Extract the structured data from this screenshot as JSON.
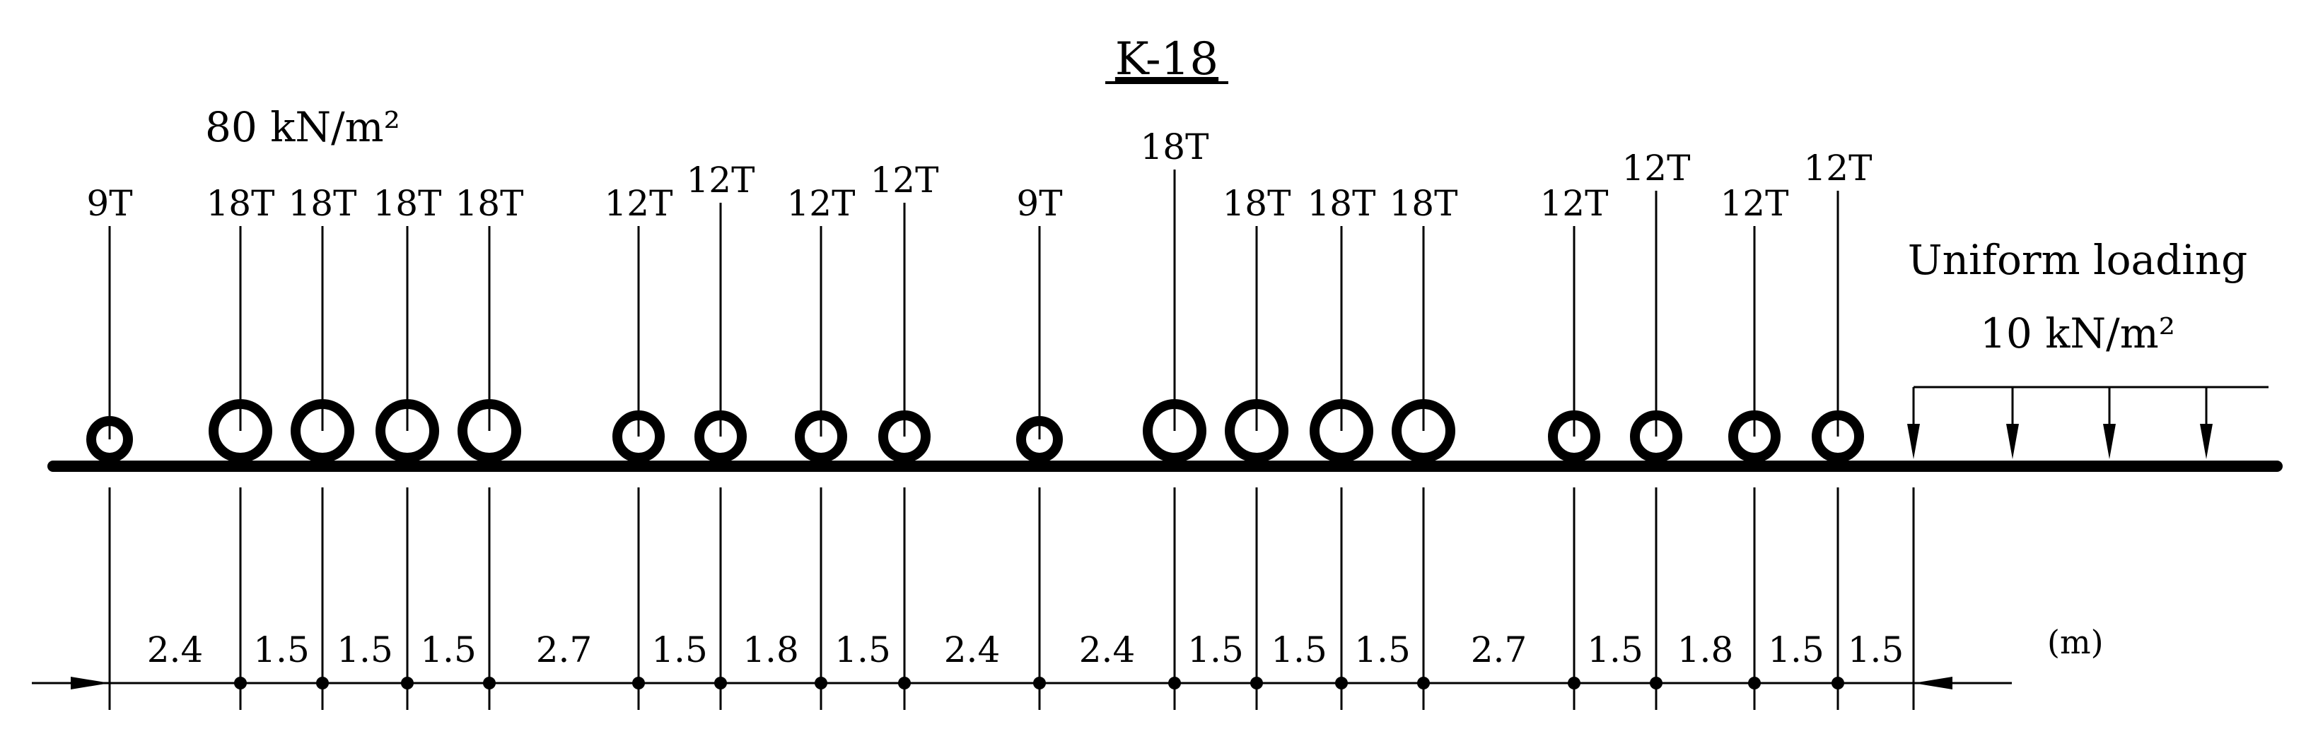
{
  "title": "K-18",
  "pressure_label": "80 kN/m²",
  "uniform": {
    "line1": "Uniform loading",
    "line2": "10 kN/m²"
  },
  "unit_label": "(m)",
  "axles": [
    {
      "label": "9T",
      "size": "small"
    },
    {
      "label": "18T",
      "size": "large"
    },
    {
      "label": "18T",
      "size": "large"
    },
    {
      "label": "18T",
      "size": "large"
    },
    {
      "label": "18T",
      "size": "large"
    },
    {
      "label": "12T",
      "size": "medium"
    },
    {
      "label": "12T",
      "size": "medium"
    },
    {
      "label": "12T",
      "size": "medium"
    },
    {
      "label": "12T",
      "size": "medium"
    },
    {
      "label": "9T",
      "size": "small"
    },
    {
      "label": "18T",
      "size": "large"
    },
    {
      "label": "18T",
      "size": "large"
    },
    {
      "label": "18T",
      "size": "large"
    },
    {
      "label": "18T",
      "size": "large"
    },
    {
      "label": "12T",
      "size": "medium"
    },
    {
      "label": "12T",
      "size": "medium"
    },
    {
      "label": "12T",
      "size": "medium"
    },
    {
      "label": "12T",
      "size": "medium"
    }
  ],
  "spacings": [
    "2.4",
    "1.5",
    "1.5",
    "1.5",
    "2.7",
    "1.5",
    "1.8",
    "1.5",
    "2.4",
    "2.4",
    "1.5",
    "1.5",
    "1.5",
    "2.7",
    "1.5",
    "1.8",
    "1.5",
    "1.5"
  ]
}
